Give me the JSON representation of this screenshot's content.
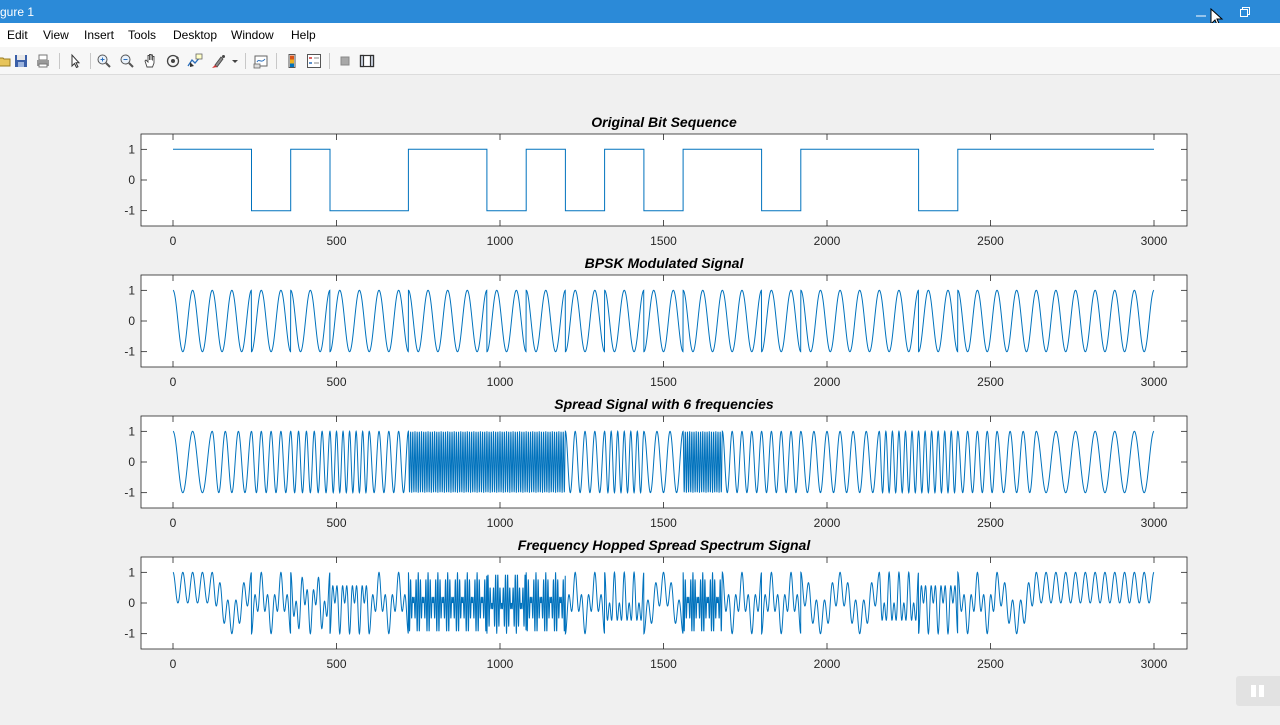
{
  "window": {
    "title": "gure 1"
  },
  "menu": [
    "Edit",
    "View",
    "Insert",
    "Tools",
    "Desktop",
    "Window",
    "Help"
  ],
  "toolbar_icons": [
    "open-icon",
    "save-icon",
    "print-icon",
    "pointer-icon",
    "zoom-in-icon",
    "zoom-out-icon",
    "pan-icon",
    "rotate-3d-icon",
    "data-cursor-icon",
    "brush-icon",
    "link-plot-icon",
    "colorbar-icon",
    "legend-icon",
    "hide-plot-tools-icon",
    "show-plot-tools-icon"
  ],
  "colors": {
    "line": "#0072bd",
    "titlebar": "#2b8ad8",
    "axes_bg": "#ffffff"
  },
  "chart_data": [
    {
      "type": "line",
      "title": "Original Bit Sequence",
      "xlim": [
        0,
        3000
      ],
      "ylim": [
        -1.5,
        1.5
      ],
      "xticks": [
        0,
        500,
        1000,
        1500,
        2000,
        2500,
        3000
      ],
      "yticks": [
        -1,
        0,
        1
      ],
      "bits": [
        1,
        1,
        -1,
        1,
        -1,
        -1,
        1,
        1,
        -1,
        1,
        -1,
        1,
        -1,
        1,
        1,
        -1,
        1,
        1,
        1,
        -1,
        1,
        1,
        1,
        1,
        1
      ],
      "samples_per_bit": 120
    },
    {
      "type": "line",
      "title": "BPSK Modulated Signal",
      "xlim": [
        0,
        3000
      ],
      "ylim": [
        -1.5,
        1.5
      ],
      "xticks": [
        0,
        500,
        1000,
        1500,
        2000,
        2500,
        3000
      ],
      "yticks": [
        -1,
        0,
        1
      ],
      "cycles_per_bit": 2
    },
    {
      "type": "line",
      "title": "Spread Signal with 6 frequencies",
      "xlim": [
        0,
        3000
      ],
      "ylim": [
        -1.5,
        1.5
      ],
      "xticks": [
        0,
        500,
        1000,
        1500,
        2000,
        2500,
        3000
      ],
      "yticks": [
        -1,
        0,
        1
      ],
      "hop_cycles_per_bit": [
        2,
        3,
        4,
        5,
        6,
        4,
        18,
        18,
        18,
        18,
        4,
        6,
        3,
        18,
        4,
        4,
        3,
        3,
        6,
        6,
        4,
        3,
        2,
        2,
        2
      ]
    },
    {
      "type": "line",
      "title": "Frequency Hopped Spread Spectrum Signal",
      "xlim": [
        0,
        3000
      ],
      "ylim": [
        -1.5,
        1.5
      ],
      "xticks": [
        0,
        500,
        1000,
        1500,
        2000,
        2500,
        3000
      ],
      "yticks": [
        -1,
        0,
        1
      ]
    }
  ]
}
